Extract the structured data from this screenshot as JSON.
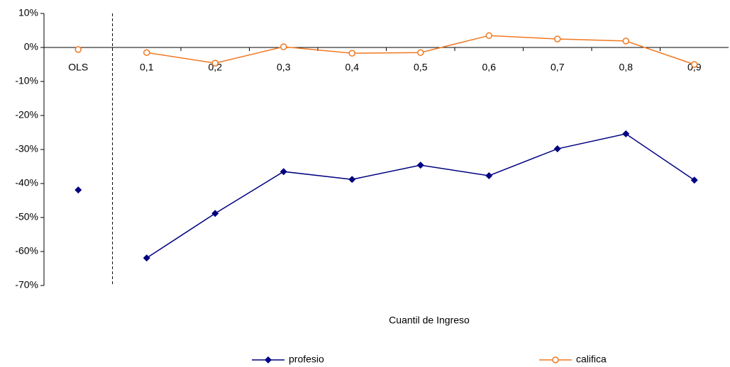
{
  "chart_data": {
    "type": "line",
    "x_label": "Cuantil de Ingreso",
    "categories": [
      "OLS",
      "0,1",
      "0,2",
      "0,3",
      "0,4",
      "0,5",
      "0,6",
      "0,7",
      "0,8",
      "0,9"
    ],
    "series": [
      {
        "name": "profesio",
        "color": "#000080",
        "marker": "diamond",
        "values": [
          -41.9,
          -61.9,
          -48.8,
          -36.5,
          -38.8,
          -34.6,
          -37.7,
          -29.8,
          -25.4,
          -39.0
        ]
      },
      {
        "name": "califica",
        "color": "#f07820",
        "marker": "open-circle",
        "values": [
          -0.6,
          -1.5,
          -4.6,
          0.2,
          -1.7,
          -1.5,
          3.5,
          2.5,
          1.9,
          -5.0
        ]
      }
    ],
    "ylim": [
      -70,
      10
    ],
    "yticks": [
      {
        "value": -70,
        "label": "-70%"
      },
      {
        "value": -60,
        "label": "-60%"
      },
      {
        "value": -50,
        "label": "-50%"
      },
      {
        "value": -40,
        "label": "-40%"
      },
      {
        "value": -30,
        "label": "-30%"
      },
      {
        "value": -20,
        "label": "-20%"
      },
      {
        "value": -10,
        "label": "-10%"
      },
      {
        "value": 0,
        "label": "0%"
      },
      {
        "value": 10,
        "label": "10%"
      }
    ],
    "divider": "dashed",
    "legend": "bottom"
  }
}
